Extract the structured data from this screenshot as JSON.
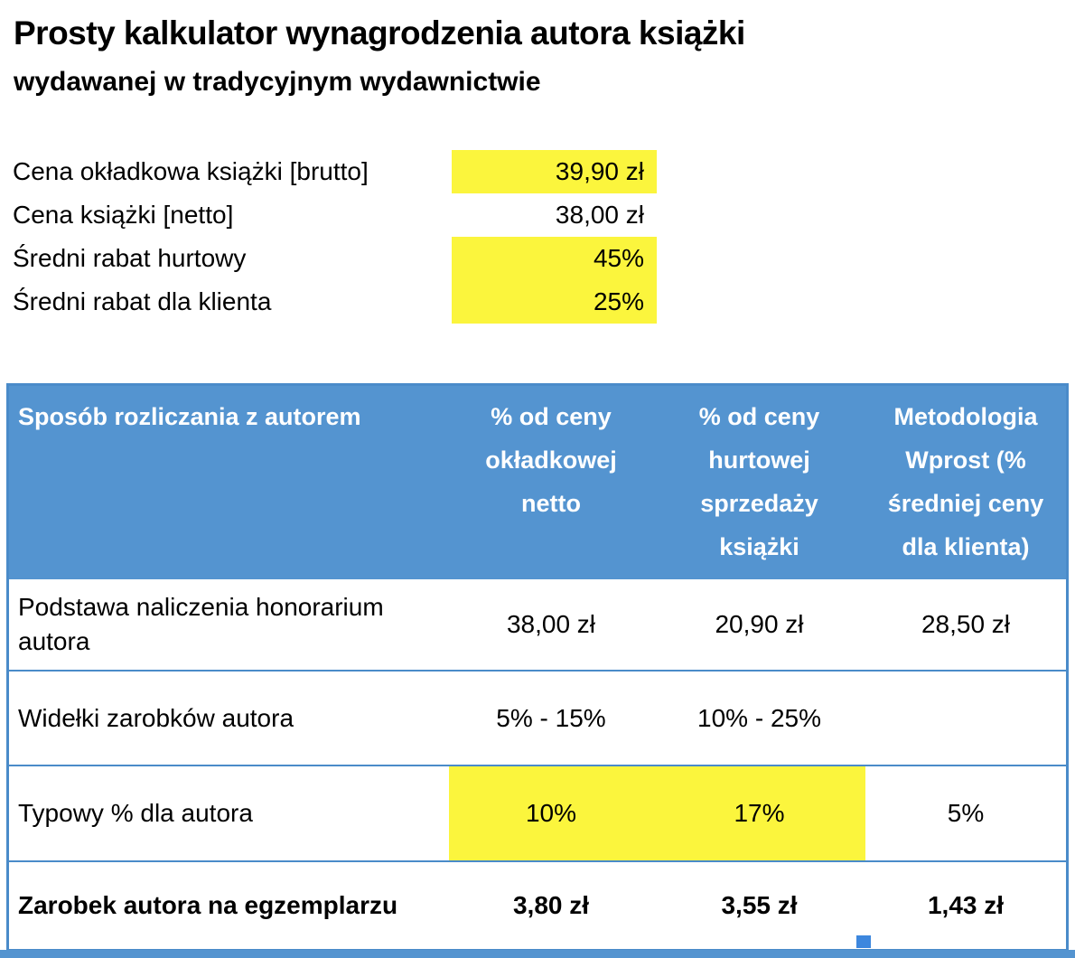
{
  "title": {
    "line1": "Prosty kalkulator wynagrodzenia autora książki",
    "line2": "wydawanej w tradycyjnym wydawnictwie"
  },
  "inputs": [
    {
      "label": "Cena okładkowa książki [brutto]",
      "value": "39,90 zł",
      "highlight": true
    },
    {
      "label": "Cena książki [netto]",
      "value": "38,00 zł",
      "highlight": false
    },
    {
      "label": "Średni rabat hurtowy",
      "value": "45%",
      "highlight": true
    },
    {
      "label": "Średni rabat dla klienta",
      "value": "25%",
      "highlight": true
    }
  ],
  "table": {
    "header": [
      "Sposób rozliczania z autorem",
      "% od ceny okładkowej netto",
      "% od ceny hurtowej sprzedaży książki",
      "Metodologia Wprost (% średniej ceny dla klienta)"
    ],
    "rows": [
      {
        "label": "Podstawa naliczenia honorarium autora",
        "values": [
          "38,00 zł",
          "20,90 zł",
          "28,50 zł"
        ]
      },
      {
        "label": "Widełki zarobków autora",
        "values": [
          "5% - 15%",
          "10% - 25%",
          ""
        ]
      },
      {
        "label": "Typowy % dla autora",
        "values": [
          "10%",
          "17%",
          "5%"
        ]
      },
      {
        "label": "Zarobek autora na egzemplarzu",
        "values": [
          "3,80 zł",
          "3,55 zł",
          "1,43 zł"
        ]
      }
    ]
  },
  "colors": {
    "highlight_yellow": "#FBF53D",
    "header_blue": "#5494D0",
    "border_blue": "#4A8BC9",
    "handle_blue": "#3D87DE"
  }
}
